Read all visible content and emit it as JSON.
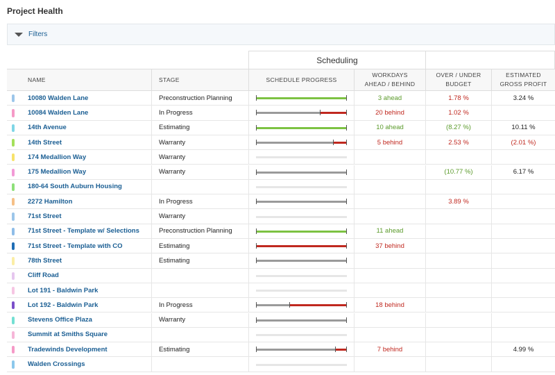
{
  "header": {
    "title": "Project Health",
    "filters": "Filters"
  },
  "group_header": "Scheduling",
  "columns": [
    "NAME",
    "STAGE",
    "SCHEDULE PROGRESS",
    "WORKDAYS\nAHEAD / BEHIND",
    "OVER / UNDER\nBUDGET",
    "ESTIMATED\nGROSS PROFIT"
  ],
  "bar_colors": [
    "#9a9a9a",
    "#c0281f",
    "#7cc242"
  ],
  "rows": [
    {
      "name": "10080 Walden Lane",
      "color": "#9cc6ea",
      "stage": "Preconstruction Planning",
      "bar": [
        0,
        0,
        1
      ],
      "workdays": {
        "text": "3 ahead",
        "color": "#5a9a2a"
      },
      "budget": {
        "text": "1.78 %",
        "color": "#c0281f"
      },
      "profit": {
        "text": "3.24 %",
        "color": "#222222"
      }
    },
    {
      "name": "10084 Walden Lane",
      "color": "#f59ac7",
      "stage": "In Progress",
      "bar": [
        0.7,
        0.3,
        0
      ],
      "workdays": {
        "text": "20 behind",
        "color": "#c0281f"
      },
      "budget": {
        "text": "1.02 %",
        "color": "#c0281f"
      }
    },
    {
      "name": "14th Avenue",
      "color": "#7fd6e6",
      "stage": "Estimating",
      "bar": [
        0,
        0,
        1
      ],
      "workdays": {
        "text": "10 ahead",
        "color": "#5a9a2a"
      },
      "budget": {
        "text": "(8.27 %)",
        "color": "#5a9a2a"
      },
      "profit": {
        "text": "10.11 %",
        "color": "#222222"
      }
    },
    {
      "name": "14th Street",
      "color": "#a4e05a",
      "stage": "Warranty",
      "bar": [
        0.85,
        0.15,
        0
      ],
      "workdays": {
        "text": "5 behind",
        "color": "#c0281f"
      },
      "budget": {
        "text": "2.53 %",
        "color": "#c0281f"
      },
      "profit": {
        "text": "(2.01 %)",
        "color": "#c0281f"
      }
    },
    {
      "name": "174 Medallion Way",
      "color": "#f7e26b",
      "stage": "Warranty"
    },
    {
      "name": "175 Medallion Way",
      "color": "#f29ad6",
      "stage": "Warranty",
      "bar": [
        1,
        0,
        0
      ],
      "budget": {
        "text": "(10.77 %)",
        "color": "#5a9a2a"
      },
      "profit": {
        "text": "6.17 %",
        "color": "#222222"
      }
    },
    {
      "name": "180-64 South Auburn Housing",
      "color": "#8ee07a"
    },
    {
      "name": "2272 Hamilton",
      "color": "#f5c087",
      "stage": "In Progress",
      "bar": [
        1,
        0,
        0
      ],
      "budget": {
        "text": "3.89 %",
        "color": "#c0281f"
      }
    },
    {
      "name": "71st Street",
      "color": "#9cc6ea",
      "stage": "Warranty"
    },
    {
      "name": "71st Street - Template w/ Selections",
      "color": "#8fbde8",
      "stage": "Preconstruction Planning",
      "bar": [
        0,
        0,
        1
      ],
      "workdays": {
        "text": "11 ahead",
        "color": "#5a9a2a"
      }
    },
    {
      "name": "71st Street - Template with CO",
      "color": "#1f6db5",
      "stage": "Estimating",
      "bar": [
        0,
        1,
        0
      ],
      "workdays": {
        "text": "37 behind",
        "color": "#c0281f"
      }
    },
    {
      "name": "78th Street",
      "color": "#fbeea6",
      "stage": "Estimating",
      "bar": [
        1,
        0,
        0
      ]
    },
    {
      "name": "Cliff Road",
      "color": "#e6c7ef"
    },
    {
      "name": "Lot 191 - Baldwin Park",
      "color": "#f6c6e3"
    },
    {
      "name": "Lot 192 - Baldwin Park",
      "color": "#7b4fc9",
      "stage": "In Progress",
      "bar": [
        0.37,
        0.63,
        0
      ],
      "workdays": {
        "text": "18 behind",
        "color": "#c0281f"
      }
    },
    {
      "name": "Stevens Office Plaza",
      "color": "#74e0d3",
      "stage": "Warranty",
      "bar": [
        1,
        0,
        0
      ]
    },
    {
      "name": "Summit at Smiths Square",
      "color": "#f6b6d8"
    },
    {
      "name": "Tradewinds Development",
      "color": "#f59ac7",
      "stage": "Estimating",
      "bar": [
        0.87,
        0.13,
        0
      ],
      "workdays": {
        "text": "7 behind",
        "color": "#c0281f"
      },
      "profit": {
        "text": "4.99 %",
        "color": "#222222"
      }
    },
    {
      "name": "Walden Crossings",
      "color": "#8cc8ec"
    }
  ]
}
